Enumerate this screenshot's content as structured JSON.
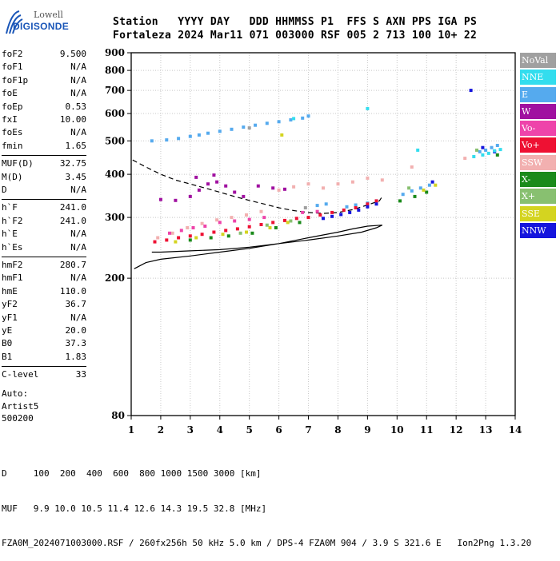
{
  "logo": {
    "brand": "Lowell",
    "product": "DIGISONDE"
  },
  "header": {
    "row1": "Station   YYYY DAY   DDD HHMMSS P1  FFS S AXN PPS IGA PS",
    "row2": "Fortaleza 2024 Mar11 071 003000 RSF 005 2 713 100 10+ 22"
  },
  "params": {
    "group1": [
      {
        "name": "foF2",
        "value": "9.500"
      },
      {
        "name": "foF1",
        "value": "N/A"
      },
      {
        "name": "foF1p",
        "value": "N/A"
      },
      {
        "name": "foE",
        "value": "N/A"
      },
      {
        "name": "foEp",
        "value": "0.53"
      },
      {
        "name": "fxI",
        "value": "10.00"
      },
      {
        "name": "foEs",
        "value": "N/A"
      },
      {
        "name": "fmin",
        "value": "1.65"
      }
    ],
    "group2": [
      {
        "name": "MUF(D)",
        "value": "32.75"
      },
      {
        "name": "M(D)",
        "value": "3.45"
      },
      {
        "name": "D",
        "value": "N/A"
      }
    ],
    "group3": [
      {
        "name": "h`F",
        "value": "241.0"
      },
      {
        "name": "h`F2",
        "value": "241.0"
      },
      {
        "name": "h`E",
        "value": "N/A"
      },
      {
        "name": "h`Es",
        "value": "N/A"
      }
    ],
    "group4": [
      {
        "name": "hmF2",
        "value": "280.7"
      },
      {
        "name": "hmF1",
        "value": "N/A"
      },
      {
        "name": "hmE",
        "value": "110.0"
      },
      {
        "name": "yF2",
        "value": "36.7"
      },
      {
        "name": "yF1",
        "value": "N/A"
      },
      {
        "name": "yE",
        "value": "20.0"
      },
      {
        "name": "B0",
        "value": "37.3"
      },
      {
        "name": "B1",
        "value": "1.83"
      }
    ],
    "group5": [
      {
        "name": "C-level",
        "value": "33"
      }
    ]
  },
  "auto": {
    "line1": "Auto:",
    "line2": "Artist5",
    "line3": "500200"
  },
  "footer": {
    "line1": "D     100  200  400  600  800 1000 1500 3000 [km]",
    "line2": "MUF   9.9 10.0 10.5 11.4 12.6 14.3 19.5 32.8 [MHz]",
    "line3": "FZA0M_2024071003000.RSF / 260fx256h 50 kHz 5.0 km / DPS-4 FZA0M 904 / 3.9 S 321.6 E   Ion2Png 1.3.20"
  },
  "legend": [
    {
      "label": "NoVal",
      "color": "#a0a0a0"
    },
    {
      "label": "NNE",
      "color": "#33ddee"
    },
    {
      "label": "E",
      "color": "#55aaee"
    },
    {
      "label": "W",
      "color": "#a010a0"
    },
    {
      "label": "Vo-",
      "color": "#ee44aa"
    },
    {
      "label": "Vo+",
      "color": "#ee1133"
    },
    {
      "label": "SSW",
      "color": "#f2b0b0"
    },
    {
      "label": "X-",
      "color": "#1a8a1a"
    },
    {
      "label": "X+",
      "color": "#88c070"
    },
    {
      "label": "SSE",
      "color": "#d4d420"
    },
    {
      "label": "NNW",
      "color": "#1515dd"
    }
  ],
  "chart_data": {
    "type": "scatter",
    "title": "",
    "xlabel": "",
    "ylabel": "",
    "xlim": [
      1,
      14
    ],
    "ylim": [
      80,
      900
    ],
    "xticks": [
      "1",
      "2",
      "3",
      "4",
      "5",
      "6",
      "7",
      "8",
      "9",
      "10",
      "11",
      "12",
      "13",
      "14"
    ],
    "yticks": [
      "80",
      "200",
      "300",
      "400",
      "500",
      "600",
      "700",
      "800",
      "900"
    ],
    "y_scale": "log",
    "grid": true,
    "legend_position": "right",
    "series": [
      {
        "name": "E",
        "color": "#55aaee",
        "points": [
          [
            1.7,
            500
          ],
          [
            2.2,
            503
          ],
          [
            2.6,
            508
          ],
          [
            3.0,
            515
          ],
          [
            3.3,
            520
          ],
          [
            3.6,
            526
          ],
          [
            4.0,
            533
          ],
          [
            4.4,
            540
          ],
          [
            4.8,
            548
          ],
          [
            5.2,
            555
          ],
          [
            5.6,
            562
          ],
          [
            6.0,
            568
          ],
          [
            6.4,
            575
          ],
          [
            6.8,
            582
          ],
          [
            7.0,
            590
          ],
          [
            8.3,
            322
          ],
          [
            8.6,
            326
          ],
          [
            9.0,
            330
          ],
          [
            9.3,
            335
          ],
          [
            10.2,
            350
          ],
          [
            10.5,
            358
          ],
          [
            10.8,
            365
          ],
          [
            11.1,
            372
          ],
          [
            12.8,
            465
          ],
          [
            13.0,
            470
          ],
          [
            13.2,
            478
          ],
          [
            13.4,
            485
          ],
          [
            7.3,
            325
          ],
          [
            7.6,
            328
          ]
        ]
      },
      {
        "name": "W",
        "color": "#a010a0",
        "points": [
          [
            2.0,
            338
          ],
          [
            2.5,
            336
          ],
          [
            3.0,
            345
          ],
          [
            3.3,
            360
          ],
          [
            3.6,
            375
          ],
          [
            3.9,
            380
          ],
          [
            4.2,
            370
          ],
          [
            4.5,
            355
          ],
          [
            4.8,
            345
          ],
          [
            5.3,
            370
          ],
          [
            5.8,
            365
          ],
          [
            6.2,
            362
          ],
          [
            3.2,
            392
          ],
          [
            3.8,
            398
          ]
        ]
      },
      {
        "name": "SSW",
        "color": "#f2b0b0",
        "points": [
          [
            1.9,
            262
          ],
          [
            2.4,
            270
          ],
          [
            2.9,
            280
          ],
          [
            3.4,
            288
          ],
          [
            3.9,
            295
          ],
          [
            4.4,
            300
          ],
          [
            4.9,
            305
          ],
          [
            5.4,
            312
          ],
          [
            6.0,
            360
          ],
          [
            6.5,
            368
          ],
          [
            7.0,
            375
          ],
          [
            7.5,
            365
          ],
          [
            8.0,
            375
          ],
          [
            8.5,
            380
          ],
          [
            9.0,
            390
          ],
          [
            9.5,
            385
          ],
          [
            10.5,
            420
          ],
          [
            12.3,
            445
          ]
        ]
      },
      {
        "name": "Vo+",
        "color": "#ee1133",
        "points": [
          [
            1.8,
            255
          ],
          [
            2.2,
            258
          ],
          [
            2.6,
            262
          ],
          [
            3.0,
            265
          ],
          [
            3.4,
            268
          ],
          [
            3.8,
            272
          ],
          [
            4.2,
            275
          ],
          [
            4.6,
            278
          ],
          [
            5.0,
            282
          ],
          [
            5.4,
            286
          ],
          [
            5.8,
            290
          ],
          [
            6.2,
            294
          ],
          [
            6.6,
            298
          ],
          [
            7.0,
            300
          ],
          [
            7.4,
            305
          ],
          [
            7.8,
            310
          ],
          [
            8.2,
            315
          ],
          [
            8.6,
            320
          ],
          [
            9.0,
            328
          ],
          [
            9.3,
            335
          ]
        ]
      },
      {
        "name": "Vo-",
        "color": "#ee44aa",
        "points": [
          [
            2.3,
            270
          ],
          [
            2.7,
            275
          ],
          [
            3.1,
            280
          ],
          [
            3.5,
            283
          ],
          [
            4.0,
            290
          ],
          [
            4.5,
            293
          ],
          [
            5.0,
            296
          ],
          [
            5.5,
            300
          ],
          [
            6.8,
            310
          ],
          [
            7.3,
            312
          ]
        ]
      },
      {
        "name": "NNW",
        "color": "#1515dd",
        "points": [
          [
            7.5,
            298
          ],
          [
            7.8,
            302
          ],
          [
            8.1,
            306
          ],
          [
            8.4,
            310
          ],
          [
            8.7,
            315
          ],
          [
            9.0,
            322
          ],
          [
            9.3,
            328
          ],
          [
            12.5,
            700
          ],
          [
            12.9,
            478
          ],
          [
            13.3,
            465
          ],
          [
            11.2,
            380
          ]
        ]
      },
      {
        "name": "X-",
        "color": "#1a8a1a",
        "points": [
          [
            3.0,
            258
          ],
          [
            3.7,
            262
          ],
          [
            4.3,
            265
          ],
          [
            5.1,
            270
          ],
          [
            5.9,
            280
          ],
          [
            6.7,
            290
          ],
          [
            10.1,
            335
          ],
          [
            10.6,
            345
          ],
          [
            11.0,
            355
          ],
          [
            13.4,
            455
          ]
        ]
      },
      {
        "name": "SSE",
        "color": "#d4d420",
        "points": [
          [
            2.5,
            255
          ],
          [
            3.2,
            262
          ],
          [
            4.1,
            268
          ],
          [
            4.9,
            272
          ],
          [
            5.7,
            280
          ],
          [
            6.3,
            290
          ],
          [
            10.9,
            360
          ],
          [
            11.3,
            372
          ],
          [
            6.1,
            520
          ]
        ]
      },
      {
        "name": "NNE",
        "color": "#33ddee",
        "points": [
          [
            12.6,
            450
          ],
          [
            12.9,
            455
          ],
          [
            13.1,
            460
          ],
          [
            13.3,
            468
          ],
          [
            13.5,
            472
          ],
          [
            9.0,
            620
          ],
          [
            10.7,
            470
          ],
          [
            6.5,
            580
          ]
        ]
      },
      {
        "name": "X+",
        "color": "#88c070",
        "points": [
          [
            4.7,
            270
          ],
          [
            5.6,
            285
          ],
          [
            6.4,
            293
          ],
          [
            10.4,
            365
          ],
          [
            12.7,
            470
          ]
        ]
      },
      {
        "name": "NoVal",
        "color": "#a0a0a0",
        "points": [
          [
            5.0,
            545
          ],
          [
            6.9,
            320
          ]
        ]
      }
    ],
    "traces": [
      {
        "style": "dashed",
        "points": [
          [
            1.05,
            440
          ],
          [
            1.5,
            420
          ],
          [
            2.0,
            400
          ],
          [
            2.5,
            385
          ],
          [
            3.0,
            375
          ],
          [
            3.5,
            365
          ],
          [
            4.0,
            355
          ],
          [
            4.5,
            345
          ],
          [
            5.0,
            336
          ],
          [
            5.5,
            328
          ],
          [
            6.0,
            320
          ],
          [
            6.5,
            314
          ],
          [
            7.0,
            310
          ],
          [
            7.5,
            308
          ],
          [
            8.0,
            310
          ],
          [
            8.5,
            316
          ],
          [
            9.0,
            326
          ],
          [
            9.4,
            335
          ],
          [
            9.5,
            345
          ]
        ]
      },
      {
        "style": "solid",
        "points": [
          [
            1.1,
            213
          ],
          [
            1.5,
            222
          ],
          [
            2.0,
            227
          ],
          [
            3.0,
            232
          ],
          [
            4.0,
            238
          ],
          [
            5.0,
            244
          ],
          [
            6.0,
            252
          ],
          [
            7.0,
            262
          ],
          [
            8.0,
            272
          ],
          [
            8.5,
            278
          ],
          [
            9.0,
            283
          ],
          [
            9.5,
            285
          ],
          [
            9.3,
            280
          ],
          [
            8.8,
            272
          ],
          [
            8.0,
            265
          ],
          [
            7.0,
            258
          ],
          [
            6.0,
            252
          ],
          [
            5.0,
            246
          ],
          [
            4.0,
            242
          ],
          [
            3.0,
            240
          ],
          [
            2.0,
            238
          ],
          [
            1.7,
            238
          ]
        ]
      }
    ]
  }
}
